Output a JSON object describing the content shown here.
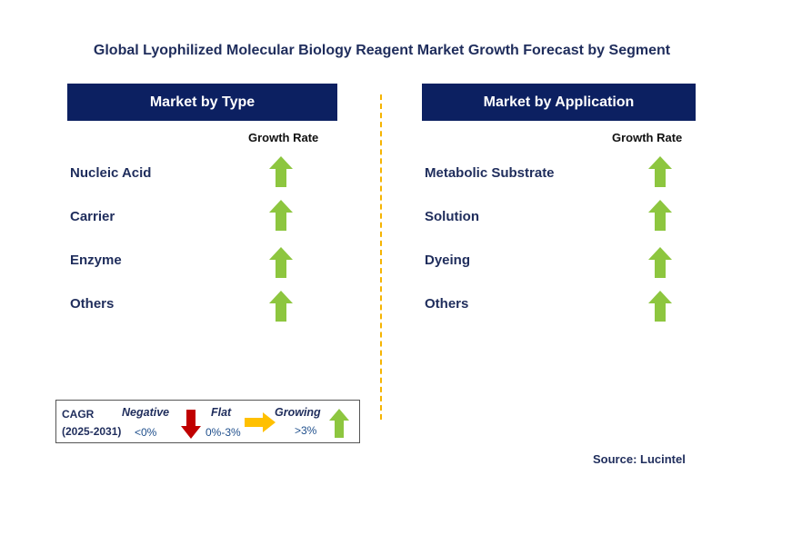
{
  "title": "Global Lyophilized Molecular Biology Reagent Market Growth Forecast by Segment",
  "left_panel": {
    "header": "Market by Type",
    "growth_label": "Growth Rate",
    "items": [
      {
        "label": "Nucleic Acid",
        "trend": "growing"
      },
      {
        "label": "Carrier",
        "trend": "growing"
      },
      {
        "label": "Enzyme",
        "trend": "growing"
      },
      {
        "label": "Others",
        "trend": "growing"
      }
    ]
  },
  "right_panel": {
    "header": "Market by Application",
    "growth_label": "Growth Rate",
    "items": [
      {
        "label": "Metabolic Substrate",
        "trend": "growing"
      },
      {
        "label": "Solution",
        "trend": "growing"
      },
      {
        "label": "Dyeing",
        "trend": "growing"
      },
      {
        "label": "Others",
        "trend": "growing"
      }
    ]
  },
  "legend": {
    "cagr_label": "CAGR",
    "period": "(2025-2031)",
    "negative": {
      "label": "Negative",
      "range": "<0%",
      "icon": "red-down-arrow-icon"
    },
    "flat": {
      "label": "Flat",
      "range": "0%-3%",
      "icon": "orange-right-arrow-icon"
    },
    "growing": {
      "label": "Growing",
      "range": ">3%",
      "icon": "green-up-arrow-icon"
    }
  },
  "source": "Source: Lucintel",
  "colors": {
    "header_bg": "#0c2061",
    "title_text": "#1f2d5c",
    "growing": "#8dc63f",
    "negative": "#c00000",
    "flat": "#ffc000",
    "divider": "#f5b400"
  }
}
